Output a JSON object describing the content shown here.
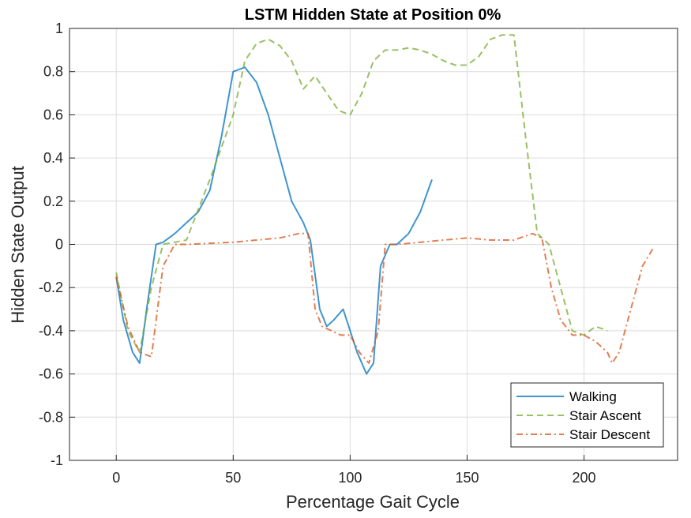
{
  "chart_data": {
    "type": "line",
    "title": "LSTM Hidden State at Position 0%",
    "xlabel": "Percentage Gait Cycle",
    "ylabel": "Hidden State Output",
    "xlim": [
      -20,
      240
    ],
    "ylim": [
      -1,
      1
    ],
    "xticks": [
      "0",
      "50",
      "100",
      "150",
      "200"
    ],
    "yticks": [
      "-1",
      "-0.8",
      "-0.6",
      "-0.4",
      "-0.2",
      "0",
      "0.2",
      "0.4",
      "0.6",
      "0.8",
      "1"
    ],
    "grid": true,
    "legend_position": "bottom-right",
    "series": [
      {
        "name": "Walking",
        "color": "#0072BD",
        "style": "solid",
        "x": [
          0,
          3,
          7,
          10,
          13,
          17,
          20,
          25,
          30,
          35,
          40,
          45,
          50,
          55,
          60,
          65,
          70,
          75,
          80,
          83,
          87,
          90,
          93,
          97,
          100,
          103,
          107,
          110,
          113,
          117,
          120,
          125,
          130,
          135
        ],
        "values": [
          -0.15,
          -0.35,
          -0.5,
          -0.55,
          -0.3,
          0.0,
          0.01,
          0.05,
          0.1,
          0.15,
          0.25,
          0.5,
          0.8,
          0.82,
          0.75,
          0.6,
          0.4,
          0.2,
          0.1,
          0.02,
          -0.3,
          -0.38,
          -0.35,
          -0.3,
          -0.4,
          -0.5,
          -0.6,
          -0.55,
          -0.1,
          0.0,
          0.0,
          0.05,
          0.15,
          0.3
        ]
      },
      {
        "name": "Stair Ascent",
        "color": "#77AC30",
        "style": "dashed",
        "x": [
          0,
          5,
          10,
          15,
          20,
          30,
          40,
          50,
          55,
          60,
          65,
          70,
          75,
          80,
          85,
          90,
          95,
          100,
          105,
          110,
          115,
          120,
          125,
          130,
          135,
          140,
          145,
          150,
          155,
          160,
          165,
          170,
          175,
          180,
          185,
          190,
          195,
          200,
          205,
          210
        ],
        "values": [
          -0.13,
          -0.4,
          -0.5,
          -0.2,
          0.0,
          0.02,
          0.3,
          0.6,
          0.85,
          0.93,
          0.95,
          0.92,
          0.85,
          0.72,
          0.78,
          0.7,
          0.62,
          0.6,
          0.7,
          0.85,
          0.9,
          0.9,
          0.91,
          0.9,
          0.88,
          0.85,
          0.83,
          0.83,
          0.87,
          0.95,
          0.97,
          0.97,
          0.5,
          0.05,
          0.0,
          -0.2,
          -0.4,
          -0.42,
          -0.38,
          -0.4
        ]
      },
      {
        "name": "Stair Descent",
        "color": "#D95319",
        "style": "dashdot",
        "x": [
          0,
          5,
          10,
          15,
          20,
          25,
          30,
          50,
          60,
          70,
          78,
          82,
          85,
          88,
          92,
          96,
          100,
          104,
          108,
          112,
          115,
          120,
          130,
          140,
          150,
          160,
          170,
          178,
          182,
          186,
          190,
          195,
          200,
          205,
          210,
          212,
          215,
          220,
          225,
          230
        ],
        "values": [
          -0.15,
          -0.38,
          -0.5,
          -0.52,
          -0.1,
          0.0,
          0.0,
          0.01,
          0.02,
          0.03,
          0.05,
          0.05,
          -0.3,
          -0.38,
          -0.4,
          -0.42,
          -0.42,
          -0.5,
          -0.55,
          -0.4,
          0.0,
          0.0,
          0.01,
          0.02,
          0.03,
          0.02,
          0.02,
          0.05,
          0.03,
          -0.2,
          -0.35,
          -0.42,
          -0.42,
          -0.45,
          -0.5,
          -0.55,
          -0.5,
          -0.3,
          -0.1,
          -0.01
        ]
      }
    ]
  }
}
